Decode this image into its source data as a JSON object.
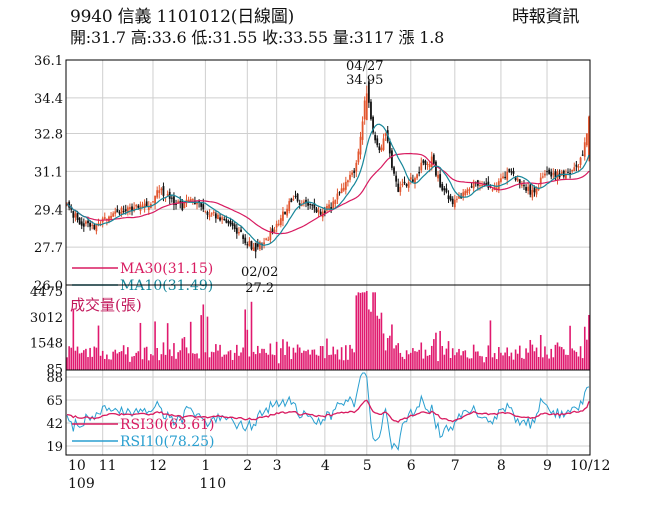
{
  "header": {
    "title": "9940  信義 1101012(日線圖)",
    "quote": "開:31.7 高:33.6 低:31.55 收:33.55 量:3117 漲 1.8",
    "source": "時報資訊"
  },
  "colors": {
    "up_candle": "#e2562f",
    "down_candle": "#111111",
    "ma30": "#d81b60",
    "ma10": "#17879a",
    "volume": "#e0196e",
    "rsi30": "#d81b60",
    "rsi10": "#2a9fd0",
    "volume_label": "#c2185b",
    "grid": "#cfcfcf",
    "frame": "#000000"
  },
  "chart_data": [
    {
      "type": "candlestick",
      "panel": "price",
      "ylim": [
        26.0,
        36.1
      ],
      "yticks": [
        "36.1",
        "34.4",
        "32.8",
        "31.1",
        "29.4",
        "27.7",
        "26.0"
      ],
      "ytick_values": [
        36.1,
        34.4,
        32.8,
        31.1,
        29.4,
        27.7,
        26.0
      ],
      "grid": true,
      "x_count": 250,
      "key_points": [
        [
          0,
          29.6
        ],
        [
          5,
          28.9
        ],
        [
          12,
          28.6
        ],
        [
          20,
          29.0
        ],
        [
          26,
          29.4
        ],
        [
          34,
          29.5
        ],
        [
          40,
          29.7
        ],
        [
          44,
          30.3
        ],
        [
          50,
          29.8
        ],
        [
          55,
          29.5
        ],
        [
          60,
          29.9
        ],
        [
          65,
          29.3
        ],
        [
          70,
          29.2
        ],
        [
          75,
          28.8
        ],
        [
          80,
          28.6
        ],
        [
          85,
          28.0
        ],
        [
          90,
          27.6
        ],
        [
          96,
          28.1
        ],
        [
          102,
          29.0
        ],
        [
          108,
          29.9
        ],
        [
          114,
          29.6
        ],
        [
          120,
          29.2
        ],
        [
          126,
          29.5
        ],
        [
          132,
          30.5
        ],
        [
          137,
          31.2
        ],
        [
          140,
          32.5
        ],
        [
          143,
          35.0
        ],
        [
          146,
          32.8
        ],
        [
          149,
          32.0
        ],
        [
          152,
          32.9
        ],
        [
          155,
          31.3
        ],
        [
          158,
          30.2
        ],
        [
          162,
          30.6
        ],
        [
          166,
          30.8
        ],
        [
          170,
          31.5
        ],
        [
          174,
          31.6
        ],
        [
          178,
          30.5
        ],
        [
          182,
          29.9
        ],
        [
          186,
          29.7
        ],
        [
          190,
          30.2
        ],
        [
          196,
          30.6
        ],
        [
          204,
          30.4
        ],
        [
          212,
          31.1
        ],
        [
          218,
          30.3
        ],
        [
          222,
          30.2
        ],
        [
          228,
          30.9
        ],
        [
          234,
          31.0
        ],
        [
          240,
          30.9
        ],
        [
          246,
          31.7
        ],
        [
          249,
          33.55
        ]
      ],
      "moving_averages": [
        {
          "name": "MA30",
          "value": "31.15",
          "label": "MA30(31.15)"
        },
        {
          "name": "MA10",
          "value": "31.49",
          "label": "MA10(31.49)"
        }
      ],
      "annotations": [
        {
          "date": "04/27",
          "value": "34.95",
          "x_index": 143
        },
        {
          "date": "02/02",
          "value": "27.2",
          "x_index": 90
        }
      ]
    },
    {
      "type": "bar",
      "panel": "volume",
      "label": "成交量(張)",
      "ylim": [
        0,
        4475
      ],
      "yticks": [
        "4475",
        "3012",
        "1548",
        "85"
      ],
      "ytick_values": [
        4475,
        3012,
        1548,
        85
      ],
      "last_value": 3117
    },
    {
      "type": "line",
      "panel": "rsi",
      "ylim": [
        0,
        100
      ],
      "yticks": [
        "88",
        "65",
        "42",
        "19"
      ],
      "ytick_values": [
        88,
        65,
        42,
        19
      ],
      "series": [
        {
          "name": "RSI30",
          "value": "63.61",
          "label": "RSI30(63.61)"
        },
        {
          "name": "RSI10",
          "value": "78.25",
          "label": "RSI10(78.25)"
        }
      ]
    }
  ],
  "x_axis": {
    "months": [
      {
        "label": "10",
        "index": 0
      },
      {
        "label": "11",
        "index": 17
      },
      {
        "label": "12",
        "index": 41
      },
      {
        "label": "1",
        "index": 66
      },
      {
        "label": "2",
        "index": 86
      },
      {
        "label": "3",
        "index": 100
      },
      {
        "label": "4",
        "index": 123
      },
      {
        "label": "5",
        "index": 143
      },
      {
        "label": "6",
        "index": 164
      },
      {
        "label": "7",
        "index": 185
      },
      {
        "label": "8",
        "index": 207
      },
      {
        "label": "9",
        "index": 229
      },
      {
        "label": "10/12",
        "index": 249
      }
    ],
    "years": [
      {
        "label": "109",
        "index": 0
      },
      {
        "label": "110",
        "index": 66
      }
    ]
  }
}
